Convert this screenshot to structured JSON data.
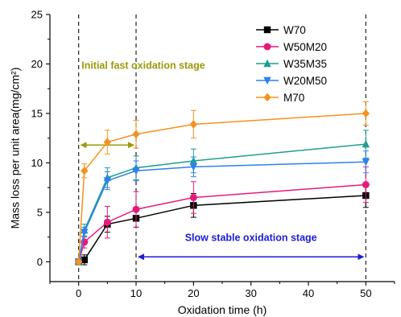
{
  "chart_data": {
    "type": "line",
    "title": "",
    "xlabel": "Oxidation time (h)",
    "ylabel": "Mass loss per unit area(mg/cm²)",
    "xlim": [
      -5,
      55
    ],
    "ylim": [
      -2,
      25
    ],
    "xticks": [
      0,
      10,
      20,
      30,
      40,
      50
    ],
    "yticks": [
      0,
      5,
      10,
      15,
      20,
      25
    ],
    "x": [
      0,
      1,
      5,
      10,
      20,
      50
    ],
    "grid": false,
    "legend_position": "top-right",
    "series": [
      {
        "name": "W70",
        "color": "#000000",
        "marker": "square",
        "values": [
          0,
          0.2,
          3.8,
          4.4,
          5.7,
          6.7
        ],
        "errors": [
          0,
          0.5,
          0.8,
          0.9,
          1.2,
          1.2
        ]
      },
      {
        "name": "W50M20",
        "color": "#e8197d",
        "marker": "circle",
        "values": [
          0,
          2.0,
          4.0,
          5.3,
          6.5,
          7.8
        ],
        "errors": [
          0,
          0.6,
          1.6,
          1.8,
          1.6,
          1.8
        ]
      },
      {
        "name": "W35M35",
        "color": "#1f9e8e",
        "marker": "triangle-up",
        "values": [
          0,
          3.2,
          8.5,
          9.5,
          10.2,
          11.9
        ],
        "errors": [
          0,
          0.6,
          1.0,
          1.2,
          1.2,
          1.4
        ]
      },
      {
        "name": "W20M50",
        "color": "#2f80ed",
        "marker": "triangle-down",
        "values": [
          0,
          3.0,
          8.2,
          9.2,
          9.6,
          10.1
        ],
        "errors": [
          0,
          0.5,
          0.9,
          1.0,
          1.0,
          1.1
        ]
      },
      {
        "name": "M70",
        "color": "#f5921e",
        "marker": "diamond",
        "values": [
          0,
          9.2,
          12.1,
          12.9,
          13.9,
          15.0
        ],
        "errors": [
          0,
          0.7,
          1.2,
          1.4,
          1.4,
          1.2
        ]
      }
    ],
    "annotations": [
      {
        "text": "Initial fast oxidation stage",
        "color": "#9a9a0a",
        "arrow_from": 0,
        "arrow_to": 10,
        "arrow_y": 11.8,
        "text_x": 0.5,
        "text_y": 19.5
      },
      {
        "text": "Slow stable oxidation stage",
        "color": "#1d1dd6",
        "arrow_from": 10,
        "arrow_to": 50,
        "arrow_y": 0.5,
        "text_x": 30,
        "text_y": 2.1
      }
    ],
    "vlines": [
      0,
      10,
      50
    ]
  }
}
